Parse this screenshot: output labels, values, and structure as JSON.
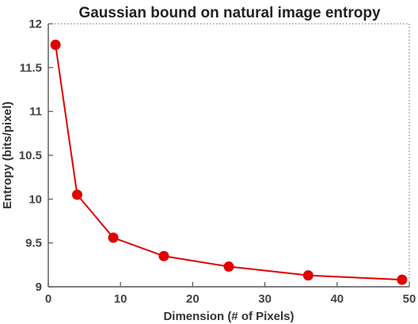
{
  "chart_data": {
    "type": "line",
    "title": "Gaussian bound on natural image entropy",
    "xlabel": "Dimension (# of Pixels)",
    "ylabel": "Entropy (bits/pixel)",
    "xlim": [
      0,
      50
    ],
    "ylim": [
      9,
      12
    ],
    "xticks": [
      0,
      10,
      20,
      30,
      40,
      50
    ],
    "xtick_labels": [
      "0",
      "10",
      "20",
      "30",
      "40",
      "50"
    ],
    "yticks": [
      9,
      9.5,
      10,
      10.5,
      11,
      11.5,
      12
    ],
    "ytick_labels": [
      "9",
      "9.5",
      "10",
      "10.5",
      "11",
      "11.5",
      "12"
    ],
    "grid": false,
    "series": [
      {
        "color": "#e00000",
        "marker": "circle",
        "points": [
          {
            "x": 1,
            "y": 11.76
          },
          {
            "x": 4,
            "y": 10.05
          },
          {
            "x": 9,
            "y": 9.56
          },
          {
            "x": 16,
            "y": 9.35
          },
          {
            "x": 25,
            "y": 9.23
          },
          {
            "x": 36,
            "y": 9.13
          },
          {
            "x": 49,
            "y": 9.08
          }
        ]
      }
    ]
  }
}
